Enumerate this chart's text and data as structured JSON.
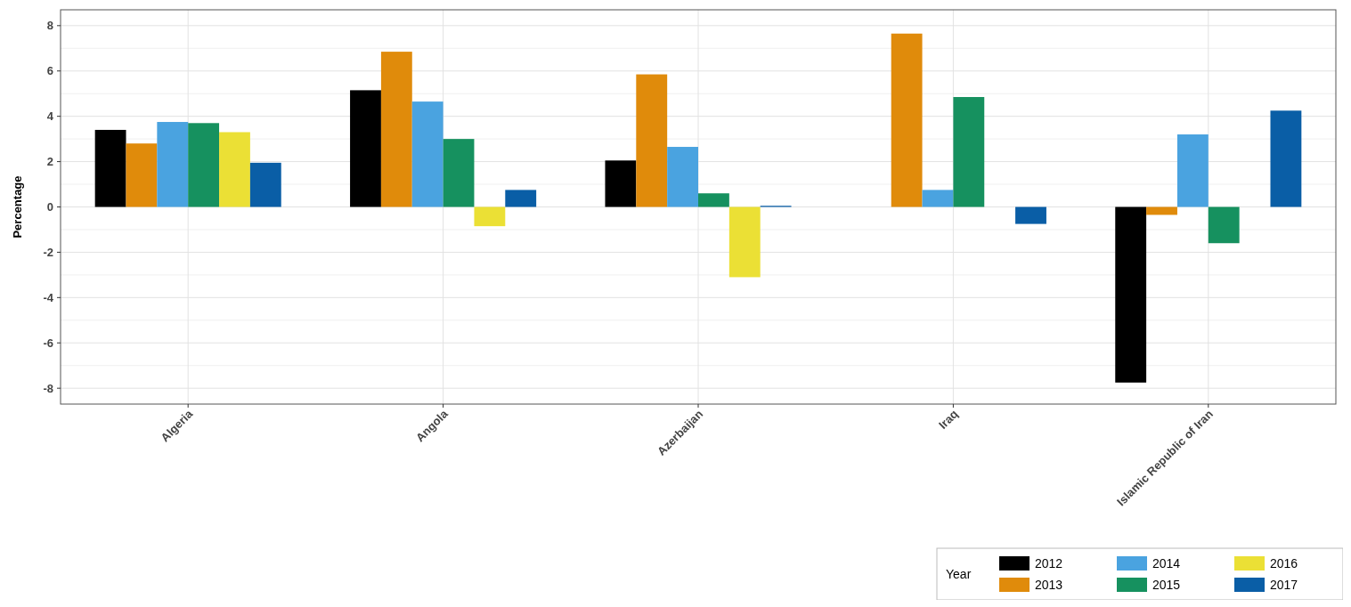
{
  "chart_data": {
    "type": "bar",
    "ylabel": "Percentage",
    "legend_title": "Year",
    "legend": "bottom right",
    "grid": true,
    "categories": [
      "Algeria",
      "Angola",
      "Azerbaijan",
      "Iraq",
      "Islamic Republic of Iran"
    ],
    "ylim": [
      -8.7,
      8.7
    ],
    "yticks": [
      -8,
      -6,
      -4,
      -2,
      0,
      2,
      4,
      6,
      8
    ],
    "series": [
      {
        "name": "2012",
        "color": "#000000",
        "values": [
          3.4,
          5.15,
          2.05,
          null,
          -7.75
        ]
      },
      {
        "name": "2013",
        "color": "#e08b0b",
        "values": [
          2.8,
          6.85,
          5.85,
          7.65,
          -0.35
        ]
      },
      {
        "name": "2014",
        "color": "#4aa3e0",
        "values": [
          3.75,
          4.65,
          2.65,
          0.75,
          3.2
        ]
      },
      {
        "name": "2015",
        "color": "#16915f",
        "values": [
          3.7,
          3.0,
          0.6,
          4.85,
          -1.6
        ]
      },
      {
        "name": "2016",
        "color": "#ebe035",
        "values": [
          3.3,
          -0.85,
          -3.1,
          null,
          null
        ]
      },
      {
        "name": "2017",
        "color": "#0a5ea6",
        "values": [
          1.95,
          0.75,
          0.05,
          -0.75,
          4.25
        ]
      }
    ]
  }
}
